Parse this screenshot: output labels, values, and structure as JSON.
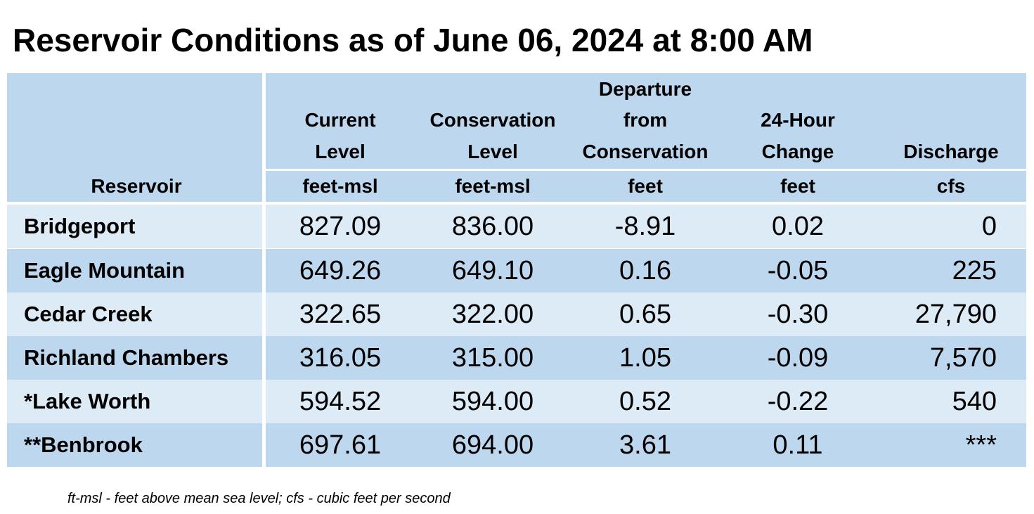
{
  "title": "Reservoir Conditions as of June 06, 2024 at 8:00 AM",
  "headers": [
    {
      "label_lines": [
        "Reservoir"
      ],
      "unit": ""
    },
    {
      "label_lines": [
        "Current",
        "Level"
      ],
      "unit": "feet-msl"
    },
    {
      "label_lines": [
        "Conservation",
        "Level"
      ],
      "unit": "feet-msl"
    },
    {
      "label_lines": [
        "Departure",
        "from",
        "Conservation"
      ],
      "unit": "feet"
    },
    {
      "label_lines": [
        "24-Hour",
        "Change"
      ],
      "unit": "feet"
    },
    {
      "label_lines": [
        "Discharge"
      ],
      "unit": "cfs"
    }
  ],
  "rows": [
    {
      "reservoir": "Bridgeport",
      "current_level": "827.09",
      "conservation_level": "836.00",
      "departure": "-8.91",
      "change_24h": "0.02",
      "discharge": "0"
    },
    {
      "reservoir": "Eagle Mountain",
      "current_level": "649.26",
      "conservation_level": "649.10",
      "departure": "0.16",
      "change_24h": "-0.05",
      "discharge": "225"
    },
    {
      "reservoir": "Cedar Creek",
      "current_level": "322.65",
      "conservation_level": "322.00",
      "departure": "0.65",
      "change_24h": "-0.30",
      "discharge": "27,790"
    },
    {
      "reservoir": "Richland Chambers",
      "current_level": "316.05",
      "conservation_level": "315.00",
      "departure": "1.05",
      "change_24h": "-0.09",
      "discharge": "7,570"
    },
    {
      "reservoir": "*Lake Worth",
      "current_level": "594.52",
      "conservation_level": "594.00",
      "departure": "0.52",
      "change_24h": "-0.22",
      "discharge": "540"
    },
    {
      "reservoir": "**Benbrook",
      "current_level": "697.61",
      "conservation_level": "694.00",
      "departure": "3.61",
      "change_24h": "0.11",
      "discharge": "***"
    }
  ],
  "footnote": "ft-msl - feet above mean sea level; cfs - cubic feet per second"
}
